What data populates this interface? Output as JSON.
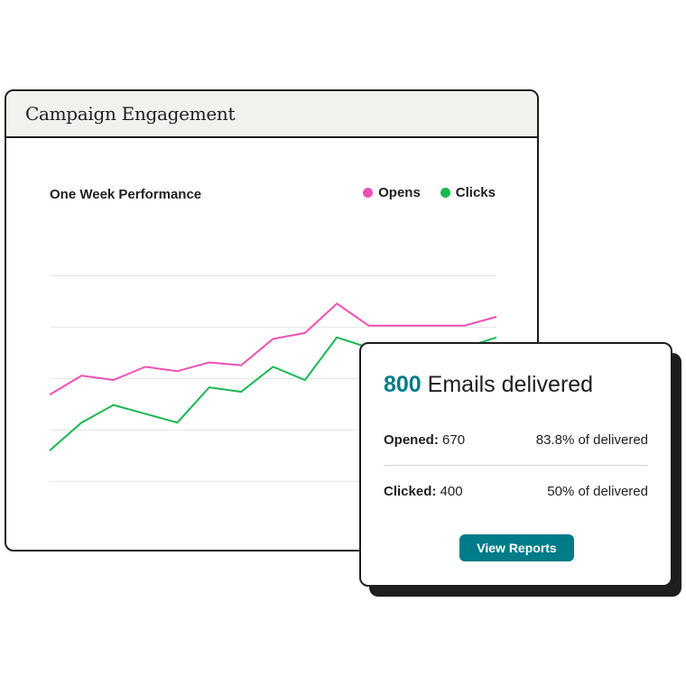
{
  "card": {
    "title": "Campaign Engagement"
  },
  "colors": {
    "opens": "#f050b4",
    "clicks": "#18b84e",
    "accent": "#007c89"
  },
  "chart_data": {
    "type": "line",
    "title": "One Week Performance",
    "x": [
      0,
      1,
      2,
      3,
      4,
      5,
      6,
      7,
      8,
      9,
      10,
      11,
      12,
      13,
      14
    ],
    "series": [
      {
        "name": "Opens",
        "values": [
          24,
          37,
          34,
          43,
          40,
          46,
          44,
          62,
          66,
          86,
          71,
          71,
          71,
          71,
          77
        ]
      },
      {
        "name": "Clicks",
        "values": [
          -14,
          5,
          17,
          11,
          5,
          29,
          26,
          43,
          34,
          63,
          56,
          56,
          56,
          56,
          63
        ]
      }
    ],
    "ylim": [
      -52,
      120
    ],
    "grid": true,
    "legend": "top-right"
  },
  "stats": {
    "count": "800",
    "headline": "Emails delivered",
    "opened_label": "Opened:",
    "opened_value": "670",
    "opened_pct": "83.8% of delivered",
    "clicked_label": "Clicked:",
    "clicked_value": "400",
    "clicked_pct": "50% of delivered",
    "button": "View Reports"
  }
}
